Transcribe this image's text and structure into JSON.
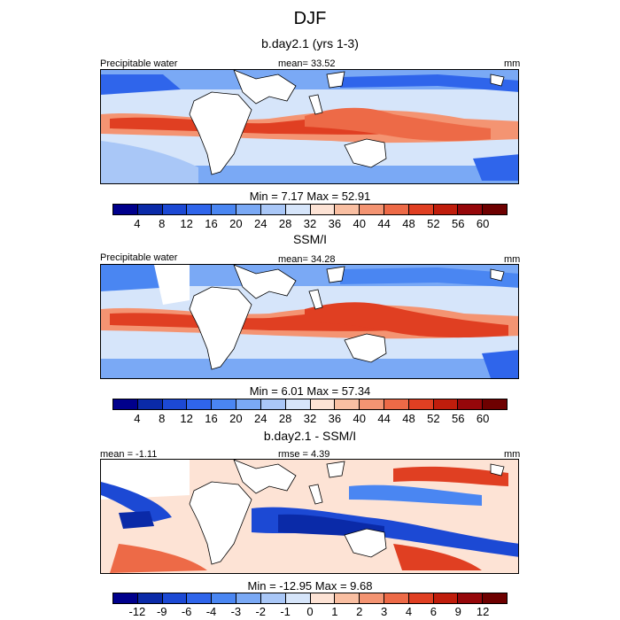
{
  "header": {
    "title": "DJF"
  },
  "panels": [
    {
      "subtitle": "b.day2.1 (yrs 1-3)",
      "left_label": "Precipitable water",
      "mid_label": "mean=  33.52",
      "right_label": "mm",
      "minmax": "Min =   7.17 Max =  52.91"
    },
    {
      "subtitle": "SSM/I",
      "left_label": "Precipitable water",
      "mid_label": "mean=  34.28",
      "right_label": "mm",
      "minmax": "Min =   6.01 Max =  57.34"
    },
    {
      "subtitle": "b.day2.1 - SSM/I",
      "left_label": "mean =  -1.11",
      "mid_label": "rmse =   4.39",
      "right_label": "mm",
      "minmax": "Min = -12.95 Max =   9.68"
    }
  ],
  "colorbars": {
    "abs_ticks": [
      "4",
      "8",
      "12",
      "16",
      "20",
      "24",
      "28",
      "32",
      "36",
      "40",
      "44",
      "48",
      "52",
      "56",
      "60"
    ],
    "diff_ticks": [
      "-12",
      "-9",
      "-6",
      "-4",
      "-3",
      "-2",
      "-1",
      "0",
      "1",
      "2",
      "3",
      "4",
      "6",
      "9",
      "12"
    ],
    "colors": [
      "#00008c",
      "#0a2aa8",
      "#1c49d4",
      "#2f65eb",
      "#4a86f2",
      "#7aa9f5",
      "#a9c7f7",
      "#d6e5fa",
      "#fde3d5",
      "#f9bfa2",
      "#f49472",
      "#ed6a47",
      "#e03f22",
      "#c01d0c",
      "#96070a",
      "#6e0000"
    ]
  },
  "chart_data": [
    {
      "type": "heatmap",
      "title": "b.day2.1 (yrs 1-3)",
      "variable": "Precipitable water",
      "units": "mm",
      "mean": 33.52,
      "min": 7.17,
      "max": 52.91,
      "levels": [
        4,
        8,
        12,
        16,
        20,
        24,
        28,
        32,
        36,
        40,
        44,
        48,
        52,
        56,
        60
      ]
    },
    {
      "type": "heatmap",
      "title": "SSM/I",
      "variable": "Precipitable water",
      "units": "mm",
      "mean": 34.28,
      "min": 6.01,
      "max": 57.34,
      "levels": [
        4,
        8,
        12,
        16,
        20,
        24,
        28,
        32,
        36,
        40,
        44,
        48,
        52,
        56,
        60
      ]
    },
    {
      "type": "heatmap",
      "title": "b.day2.1 - SSM/I",
      "units": "mm",
      "mean": -1.11,
      "rmse": 4.39,
      "min": -12.95,
      "max": 9.68,
      "levels": [
        -12,
        -9,
        -6,
        -4,
        -3,
        -2,
        -1,
        0,
        1,
        2,
        3,
        4,
        6,
        9,
        12
      ]
    }
  ]
}
